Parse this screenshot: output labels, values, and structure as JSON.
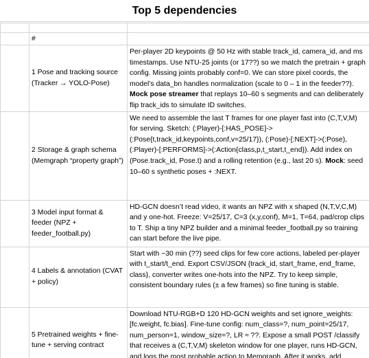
{
  "title": "Top 5 dependencies",
  "header": {
    "index_label": "#"
  },
  "rows": [
    {
      "name": "1 Pose and tracking source (Tracker → YOLO-Pose)",
      "desc_a": "Per-player 2D keypoints @ 50 Hz with stable track_id, camera_id, and ms timestamps. Use NTU-25 joints (or 17??) so we match the pretrain + graph config. Missing joints probably conf=0. We can store pixel coords, the model’s data_bn handles normalization (scale to 0 – 1 in the feeder??). ",
      "desc_bold": "Mock pose streamer",
      "desc_b": " that replays 10–60 s segments and can deliberately flip track_ids to simulate ID switches."
    },
    {
      "name": "2 Storage & graph schema (Memgraph “property graph”)",
      "desc_a": "We need to assemble the last T frames for one player fast into (C,T,V,M) for serving. Sketch: (:Player)-[:HAS_POSE]->(:Pose{t,track_id,keypoints,conf,v=25/17}), (:Pose)-[:NEXT]->(:Pose), (:Player)-[:PERFORMS]->(:Action{class,p,t_start,t_end}). Add index on (Pose.track_id, Pose.t) and a rolling retention (e.g., last 20 s). ",
      "desc_bold": "Mock",
      "desc_b": ": seed 10–60 s synthetic poses + :NEXT."
    },
    {
      "name": "3 Model input format & feeder (NPZ + feeder_football.py)",
      "desc_a": "HD-GCN doesn’t read video, it wants an NPZ with x shaped (N,T,V,C,M) and y one-hot. Freeze: V=25/17, C=3 (x,y,conf), M=1, T=64, pad/crop clips to T. Ship a tiny NPZ builder and a minimal feeder_football.py so training can start before the live pipe.",
      "desc_bold": "",
      "desc_b": ""
    },
    {
      "name": "4 Labels & annotation (CVAT + policy)",
      "desc_a": "Start with ~30 min (??) seed clips for few core actions, labeled per-player with t_start/t_end. Export CSV/JSON {track_id, start_frame, end_frame, class}, converter writes one-hots into the NPZ. Try to keep simple, consistent boundary rules (± a few frames) so fine tuning is stable.",
      "desc_bold": "",
      "desc_b": ""
    },
    {
      "name": "5 Pretrained weights + fine-tune + serving contract",
      "desc_a": "Download NTU-RGB+D 120 HD-GCN weights and set ignore_weights: [fc.weight, fc.bias]. Fine-tune config: num_class=?, num_point=25/17, num_person=1, window_size=?, LR ≈ ??. Expose a small POST /classify that receives a (C,T,V,M) skeleton window for one player, runs HD-GCN, and logs the most probable action to Memgraph. After it works, add smoothing (hysteresis + event merging) so detections are stable..",
      "desc_bold": "",
      "desc_b": ""
    }
  ]
}
